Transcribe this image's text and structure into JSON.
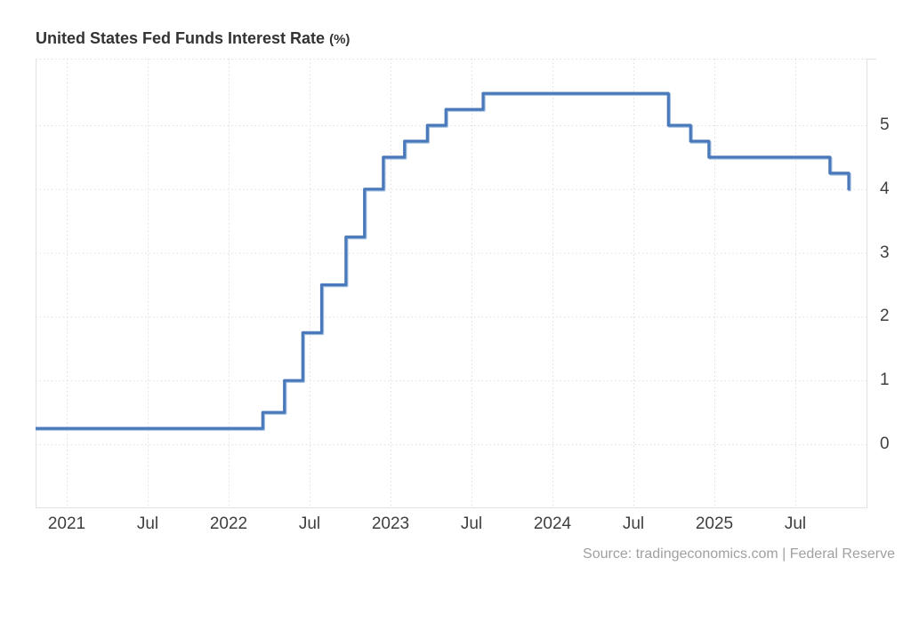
{
  "header": {
    "title": "United States Fed Funds Interest Rate",
    "unit": "(%)"
  },
  "footer": {
    "source": "Source: tradingeconomics.com | Federal Reserve"
  },
  "chart_data": {
    "type": "line",
    "line_style": "step-after",
    "title": "United States Fed Funds Interest Rate (%)",
    "xlabel": "",
    "ylabel": "",
    "unit": "%",
    "legend": "none",
    "grid": {
      "style": "dotted",
      "color": "#e0e0e0"
    },
    "colors": {
      "line": "#4a79bb",
      "line_highlight": "#a4c0e0",
      "axis_text": "#3f3f3f",
      "title_text": "#333333",
      "source_text": "#a0a0a0",
      "border": "#e2e2e2"
    },
    "x_axis": {
      "epoch": "2021-01",
      "tick_labels": [
        "2021",
        "Jul",
        "2022",
        "Jul",
        "2023",
        "Jul",
        "2024",
        "Jul",
        "2025",
        "Jul"
      ],
      "tick_months": [
        0,
        6,
        12,
        18,
        24,
        30,
        36,
        42,
        48,
        54
      ],
      "range_months": [
        -2.31,
        59.33
      ]
    },
    "y_axis": {
      "tick_values": [
        5,
        4,
        3,
        2,
        1,
        0
      ],
      "range": [
        -1.0,
        6.05
      ]
    },
    "series": [
      {
        "name": "Fed Funds Interest Rate",
        "step_points": [
          {
            "date": "2020-10-21",
            "value": 0.25
          },
          {
            "date": "2022-03-17",
            "value": 0.5
          },
          {
            "date": "2022-05-05",
            "value": 1.0
          },
          {
            "date": "2022-06-16",
            "value": 1.75
          },
          {
            "date": "2022-07-28",
            "value": 2.5
          },
          {
            "date": "2022-09-22",
            "value": 3.25
          },
          {
            "date": "2022-11-03",
            "value": 4.0
          },
          {
            "date": "2022-12-15",
            "value": 4.5
          },
          {
            "date": "2023-02-02",
            "value": 4.75
          },
          {
            "date": "2023-03-23",
            "value": 5.0
          },
          {
            "date": "2023-05-04",
            "value": 5.25
          },
          {
            "date": "2023-07-27",
            "value": 5.5
          },
          {
            "date": "2024-09-19",
            "value": 5.0
          },
          {
            "date": "2024-11-08",
            "value": 4.75
          },
          {
            "date": "2024-12-19",
            "value": 4.5
          },
          {
            "date": "2025-09-18",
            "value": 4.25
          },
          {
            "date": "2025-10-30",
            "value": 4.0
          }
        ]
      }
    ]
  }
}
